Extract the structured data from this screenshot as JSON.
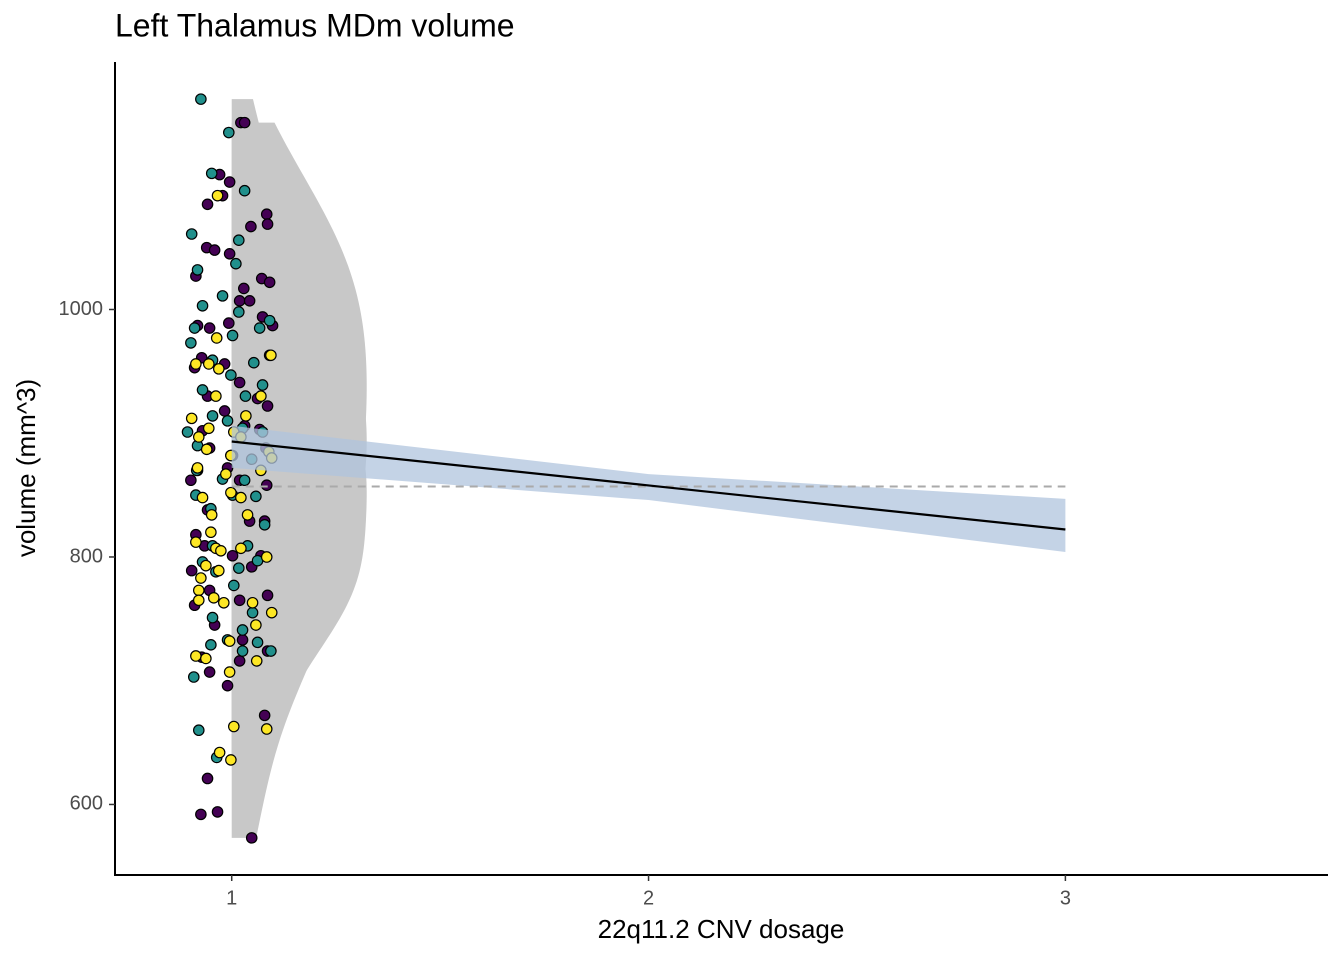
{
  "chart_data": {
    "type": "scatter",
    "title": "Left Thalamus MDm volume",
    "x_label": "22q11.2 CNV dosage",
    "y_label": "volume (mm^3)",
    "xlim": [
      0.72,
      3.63
    ],
    "ylim": [
      543,
      1200
    ],
    "xticks": [
      1,
      2,
      3
    ],
    "yticks": [
      600,
      800,
      1000
    ],
    "series": [
      {
        "color": "#440154",
        "x": [
          1.022,
          1.031,
          0.971,
          0.995,
          0.978,
          0.942,
          1.084,
          1.086,
          1.046,
          0.94,
          0.959,
          0.995,
          0.914,
          1.072,
          1.091,
          1.029,
          1.019,
          1.043,
          1.074,
          1.098,
          0.918,
          0.947,
          0.993,
          0.928,
          1.091,
          0.983,
          0.911,
          1.019,
          0.942,
          1.062,
          0.983,
          1.086,
          0.93,
          1.031,
          1.067,
          0.947,
          1.002,
          1.082,
          0.918,
          0.99,
          1.019,
          0.902,
          1.084,
          0.942,
          1.043,
          1.079,
          0.914,
          0.935,
          1.002,
          1.07,
          0.904,
          1.048,
          0.947,
          1.019,
          0.911,
          1.086,
          0.959,
          1.026,
          1.086,
          0.928,
          1.019,
          0.947,
          0.99,
          1.079,
          0.942,
          0.926,
          0.966,
          1.048
        ],
        "values": [
          1151,
          1151,
          1109,
          1103,
          1092,
          1085,
          1077,
          1069,
          1067,
          1050,
          1048,
          1045,
          1027,
          1025,
          1022,
          1017,
          1007,
          1007,
          994,
          987,
          987,
          985,
          989,
          961,
          963,
          956,
          953,
          941,
          930,
          928,
          918,
          922,
          902,
          906,
          903,
          888,
          882,
          888,
          870,
          872,
          862,
          862,
          858,
          838,
          829,
          829,
          818,
          809,
          801,
          801,
          789,
          792,
          773,
          765,
          761,
          769,
          745,
          733,
          724,
          719,
          716,
          707,
          696,
          672,
          621,
          592,
          594,
          573
        ]
      },
      {
        "color": "#21908C",
        "x": [
          0.926,
          0.993,
          0.952,
          1.031,
          0.904,
          1.017,
          1.01,
          0.918,
          0.978,
          0.93,
          1.017,
          1.091,
          0.911,
          1.067,
          0.902,
          1.002,
          0.954,
          1.053,
          0.998,
          0.93,
          1.074,
          1.033,
          0.954,
          0.99,
          0.894,
          1.026,
          1.074,
          0.918,
          0.998,
          1.048,
          0.916,
          0.978,
          1.031,
          0.914,
          0.95,
          1.002,
          1.058,
          1.079,
          0.954,
          1.038,
          0.93,
          1.062,
          0.962,
          1.017,
          1.005,
          0.954,
          1.05,
          1.026,
          0.99,
          0.95,
          1.062,
          1.026,
          1.094,
          0.909,
          0.921,
          0.964
        ],
        "values": [
          1170,
          1143,
          1110,
          1096,
          1061,
          1056,
          1037,
          1032,
          1011,
          1003,
          998,
          991,
          985,
          985,
          973,
          979,
          959,
          957,
          947,
          935,
          939,
          930,
          914,
          910,
          901,
          904,
          901,
          890,
          882,
          879,
          870,
          863,
          862,
          850,
          839,
          850,
          849,
          826,
          809,
          809,
          796,
          797,
          788,
          791,
          777,
          751,
          755,
          741,
          733,
          729,
          731,
          724,
          724,
          703,
          660,
          638
        ]
      },
      {
        "color": "#FDE725",
        "x": [
          0.966,
          0.964,
          1.094,
          0.914,
          0.945,
          0.969,
          0.962,
          1.07,
          1.034,
          0.904,
          0.945,
          0.921,
          1.005,
          1.022,
          0.94,
          0.998,
          1.089,
          1.096,
          0.918,
          0.986,
          1.07,
          0.93,
          0.998,
          1.022,
          1.038,
          0.952,
          0.95,
          0.914,
          0.962,
          0.974,
          1.022,
          1.084,
          0.938,
          0.969,
          0.926,
          0.921,
          0.957,
          0.981,
          1.05,
          0.921,
          1.096,
          1.058,
          0.995,
          0.914,
          0.938,
          1.06,
          0.995,
          1.084,
          1.005,
          0.971,
          0.998
        ],
        "values": [
          1092,
          977,
          963,
          956,
          956,
          952,
          930,
          930,
          914,
          912,
          904,
          897,
          901,
          897,
          887,
          882,
          885,
          880,
          872,
          867,
          870,
          848,
          852,
          848,
          834,
          834,
          820,
          812,
          807,
          805,
          807,
          800,
          793,
          789,
          783,
          773,
          767,
          763,
          763,
          765,
          755,
          745,
          732,
          720,
          718,
          716,
          707,
          661,
          663,
          642,
          636
        ]
      }
    ],
    "fit": {
      "x": [
        1,
        2,
        3
      ],
      "values": [
        893.3,
        857.8,
        822.2
      ],
      "ci_lower": [
        872,
        846,
        804
      ],
      "ci_upper": [
        906,
        867,
        847
      ],
      "color": "#000000",
      "band_color": "#b0c4de"
    },
    "mean_line": 857,
    "violin_color": "#c8c8c8"
  }
}
